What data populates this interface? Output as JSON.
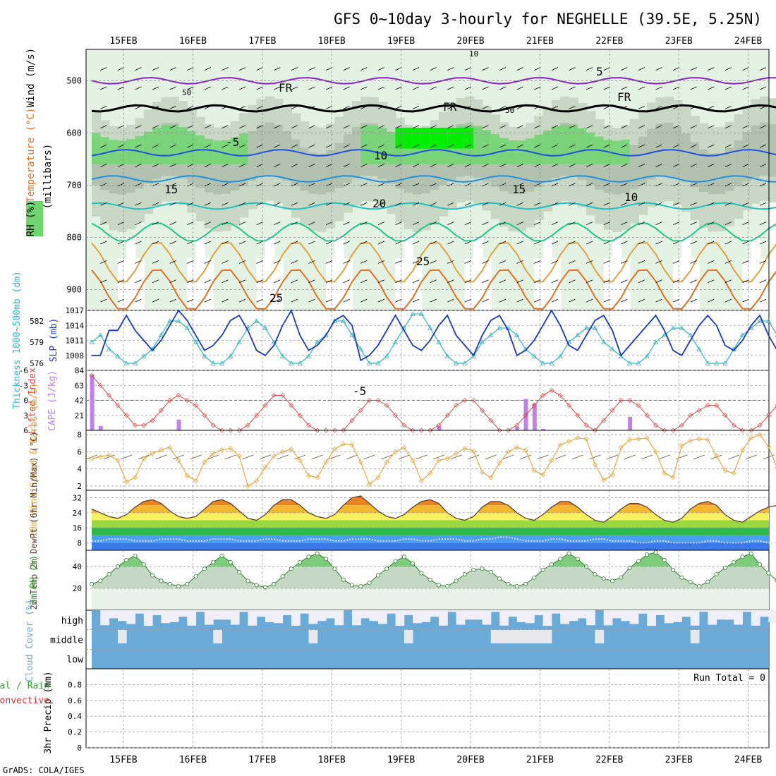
{
  "title": "GFS 0~10day 3-hourly for NEGHELLE (39.5E, 5.25N)",
  "dates": [
    "15FEB",
    "16FEB",
    "17FEB",
    "18FEB",
    "19FEB",
    "20FEB",
    "21FEB",
    "22FEB",
    "23FEB",
    "24FEB"
  ],
  "footer": "GrADS: COLA/IGES",
  "colors": {
    "rh_light": "#e4f2e4",
    "rh_mid": "#c8d8c4",
    "rh_dark": "#a4b4a0",
    "rh_green": "#6fd66f",
    "rh_bright": "#00ee00",
    "purple": "#8a22c8",
    "blue1": "#2050e0",
    "blue2": "#2090e0",
    "teal": "#20c0c0",
    "green": "#20c890",
    "orange": "#e0a040",
    "orange2": "#e07020",
    "red": "#d02060",
    "slp": "#1838c8",
    "thick": "#30b8c8",
    "li": "#e04040",
    "cape": "#c080f0",
    "wind10": "#e8a030",
    "cloud": "#6aaad8"
  },
  "chart_data": [
    {
      "type": "contour",
      "panel": "upper-air",
      "ylabel": "(millibars)",
      "side_labels": [
        "Wind (m/s)",
        "Temperature (°C)",
        "RH (%)"
      ],
      "yticks": [
        500,
        600,
        700,
        800,
        900
      ],
      "ylim": [
        440,
        940
      ],
      "temperature_labels": [
        "-5",
        "FR",
        "-5",
        "10",
        "15",
        "20",
        "25",
        "25",
        "5",
        "FR",
        "FR",
        "15",
        "10",
        "50",
        "50",
        "10"
      ],
      "isotherms": [
        {
          "name": "-5",
          "color": "purple",
          "level": 500
        },
        {
          "name": "FR",
          "color": "black",
          "level": 553
        },
        {
          "name": "-5b",
          "color": "blue1",
          "level": 638
        },
        {
          "name": "10",
          "color": "blue2",
          "level": 688
        },
        {
          "name": "15",
          "color": "teal",
          "level": 740
        },
        {
          "name": "20",
          "color": "green",
          "level": 790
        },
        {
          "name": "25",
          "color": "orange",
          "level": 848
        },
        {
          "name": "25b",
          "color": "orange2",
          "level": 900
        }
      ]
    },
    {
      "type": "line",
      "panel": "slp-thickness",
      "series": [
        {
          "name": "SLP (mb)",
          "axis": "right",
          "ylim": [
            1005,
            1017
          ],
          "yticks": [
            1008,
            1011,
            1014,
            1017
          ],
          "values": [
            1008,
            1008,
            1013,
            1013,
            1016,
            1013,
            1011,
            1009,
            1011,
            1014,
            1017,
            1015,
            1012,
            1009,
            1010,
            1012,
            1015,
            1016,
            1013,
            1009,
            1008,
            1010,
            1014,
            1017,
            1012,
            1009,
            1010,
            1012,
            1015,
            1016,
            1014,
            1007,
            1008,
            1010,
            1013,
            1016,
            1013,
            1010,
            1009,
            1011,
            1014,
            1016,
            1012,
            1010,
            1008,
            1012,
            1015,
            1016,
            1013,
            1008,
            1009,
            1011,
            1014,
            1017,
            1014,
            1010,
            1009,
            1012,
            1015,
            1016,
            1013,
            1008,
            1010,
            1012,
            1014,
            1016,
            1013,
            1009,
            1008,
            1011,
            1014,
            1016,
            1014,
            1010,
            1009,
            1011,
            1014,
            1016,
            1012,
            1009,
            1010,
            1012,
            1015,
            1017
          ]
        },
        {
          "name": "Thickness 1000~500mb (dm)",
          "axis": "left",
          "ylim": [
            575,
            583.5
          ],
          "yticks": [
            576,
            579,
            582
          ],
          "values": [
            579,
            580,
            578,
            577,
            576,
            576,
            577,
            578,
            580,
            582,
            582,
            581,
            579,
            577,
            576,
            576,
            577,
            579,
            581,
            582,
            581,
            579,
            577,
            576,
            576,
            577,
            579,
            580,
            582,
            582,
            580,
            578,
            576,
            576,
            577,
            579,
            581,
            583,
            583,
            581,
            579,
            577,
            576,
            576,
            577,
            579,
            580,
            581,
            581,
            580,
            578,
            577,
            576,
            576,
            577,
            579,
            580,
            581,
            581,
            579,
            578,
            577,
            576,
            576,
            577,
            579,
            580,
            581,
            581,
            580,
            578,
            576,
            576,
            576,
            578,
            580,
            581,
            582,
            582,
            580,
            578,
            576,
            576,
            577
          ]
        }
      ]
    },
    {
      "type": "bar+line",
      "panel": "cape-lifted-index",
      "series": [
        {
          "name": "Lifted Index",
          "ylim": [
            6,
            -6
          ],
          "yticks": [
            -6,
            -3,
            0,
            3,
            6
          ],
          "values": [
            -5,
            -3,
            -1,
            1,
            3,
            5,
            5,
            4,
            2,
            0,
            -1,
            0,
            1,
            3,
            5,
            6,
            6,
            6,
            5,
            3,
            1,
            -1,
            -1,
            1,
            3,
            5,
            6,
            6,
            6,
            6,
            4,
            2,
            0,
            0,
            1,
            3,
            5,
            6,
            6,
            6,
            5,
            3,
            1,
            0,
            0,
            2,
            4,
            6,
            6,
            5,
            3,
            1,
            -1,
            -2,
            -1,
            1,
            3,
            5,
            6,
            4,
            2,
            0,
            0,
            1,
            3,
            5,
            6,
            6,
            5,
            3,
            2,
            1,
            1,
            3,
            5,
            6,
            6,
            5,
            3,
            1,
            1,
            2,
            4,
            6,
            6,
            5,
            3,
            1
          ]
        },
        {
          "name": "CAPE (J/kg)",
          "ylim": [
            0,
            84
          ],
          "yticks": [
            21,
            42,
            63,
            84
          ],
          "values": [
            78,
            6,
            0,
            0,
            0,
            0,
            0,
            0,
            0,
            0,
            15,
            0,
            0,
            0,
            0,
            0,
            0,
            0,
            0,
            0,
            0,
            0,
            0,
            0,
            0,
            0,
            0,
            0,
            0,
            0,
            0,
            0,
            0,
            0,
            0,
            0,
            0,
            0,
            0,
            0,
            6,
            0,
            0,
            0,
            0,
            0,
            0,
            0,
            0,
            5,
            44,
            38,
            2,
            0,
            0,
            0,
            0,
            0,
            0,
            0,
            0,
            0,
            19,
            0,
            0,
            0,
            0,
            0,
            0,
            0,
            0,
            0,
            0,
            0,
            0,
            0,
            0,
            0,
            0,
            0,
            0,
            0,
            0,
            0
          ]
        }
      ]
    },
    {
      "type": "line",
      "panel": "10m-wind",
      "ylabel": "10m Wind Speed & Barbs (m/s)",
      "ylim": [
        1.5,
        8.5
      ],
      "yticks": [
        2,
        4,
        6,
        8
      ],
      "values": [
        5.2,
        5.4,
        5.6,
        5.0,
        2.5,
        3.0,
        5.2,
        5.8,
        6.2,
        6.5,
        5.0,
        3.2,
        2.6,
        4.8,
        5.8,
        6.2,
        6.4,
        5.5,
        2.0,
        2.6,
        4.2,
        5.5,
        6.0,
        6.3,
        5.0,
        3.2,
        3.0,
        4.8,
        6.3,
        6.9,
        6.8,
        4.8,
        2.2,
        3.0,
        4.8,
        6.0,
        6.5,
        5.0,
        2.6,
        3.5,
        5.0,
        5.2,
        5.8,
        6.4,
        6.1,
        3.6,
        3.0,
        4.7,
        6.0,
        6.5,
        6.2,
        3.8,
        3.3,
        5.0,
        6.8,
        7.2,
        7.6,
        7.5,
        4.5,
        2.7,
        3.3,
        6.5,
        7.4,
        7.5,
        7.6,
        6.0,
        3.5,
        3.0,
        6.7,
        7.3,
        7.5,
        7.4,
        5.5,
        3.8,
        3.5,
        6.2,
        7.6,
        8.0,
        6.6,
        4.1,
        3.9,
        5.0,
        6.2,
        6.8
      ]
    },
    {
      "type": "area",
      "panel": "2m-temp",
      "ylabel": "2m Temp 2m DewPt (6hr Min/Max) (°C)",
      "ylim": [
        4,
        36
      ],
      "yticks": [
        8,
        16,
        24,
        32
      ],
      "temp": [
        26,
        24,
        22,
        21,
        23,
        27,
        30,
        31,
        29,
        25,
        22,
        21,
        22,
        26,
        30,
        31,
        29,
        25,
        21,
        20,
        23,
        28,
        31,
        31,
        28,
        24,
        22,
        21,
        23,
        28,
        32,
        33,
        29,
        25,
        22,
        21,
        23,
        27,
        30,
        31,
        29,
        24,
        21,
        20,
        22,
        27,
        30,
        30,
        28,
        24,
        21,
        20,
        23,
        27,
        30,
        30,
        27,
        23,
        20,
        19,
        22,
        26,
        29,
        29,
        27,
        23,
        20,
        19,
        21,
        26,
        29,
        30,
        28,
        23,
        20,
        19,
        22,
        25,
        27,
        28,
        25,
        21,
        19,
        18
      ],
      "dewpt": [
        9,
        9,
        10,
        10,
        10,
        9,
        9,
        9,
        10,
        10,
        10,
        9,
        9,
        9,
        10,
        10,
        10,
        9,
        9,
        9,
        10,
        10,
        9,
        9,
        9,
        10,
        10,
        10,
        9,
        9,
        10,
        10,
        10,
        9,
        9,
        9,
        10,
        10,
        9,
        9,
        10,
        10,
        10,
        9,
        9,
        10,
        10,
        11,
        11,
        10,
        9,
        9,
        9,
        10,
        10,
        9,
        9,
        9,
        10,
        10,
        9,
        9,
        9,
        8,
        8,
        9,
        9,
        8,
        8,
        8,
        8,
        9,
        9,
        8,
        8,
        8,
        9,
        9,
        8,
        8,
        8,
        8,
        8,
        8
      ]
    },
    {
      "type": "area",
      "panel": "2m-rh",
      "ylabel": "2m RH (%)",
      "ylim": [
        0,
        55
      ],
      "yticks": [
        20,
        40
      ],
      "values": [
        24,
        27,
        33,
        40,
        46,
        50,
        42,
        32,
        27,
        24,
        22,
        24,
        31,
        38,
        44,
        50,
        44,
        35,
        27,
        23,
        21,
        24,
        31,
        38,
        44,
        49,
        52,
        47,
        38,
        28,
        23,
        22,
        25,
        32,
        38,
        45,
        49,
        43,
        34,
        28,
        23,
        22,
        27,
        33,
        37,
        38,
        35,
        29,
        24,
        22,
        24,
        30,
        37,
        42,
        47,
        52,
        47,
        40,
        33,
        29,
        27,
        30,
        39,
        45,
        51,
        53,
        46,
        37,
        30,
        26,
        22,
        26,
        33,
        39,
        44,
        49,
        52,
        42,
        34,
        27,
        24,
        22,
        25,
        31
      ]
    },
    {
      "type": "heatmap",
      "panel": "cloud-cover",
      "ylabel": "Cloud Cover (%)",
      "rows": [
        "high",
        "middle",
        "low"
      ]
    },
    {
      "type": "bar",
      "panel": "precip",
      "ylabel": "3hr Precip (mm)",
      "side_labels": [
        "Total / Rain",
        "Convective"
      ],
      "ylim": [
        0,
        1.0
      ],
      "yticks": [
        0,
        0.2,
        0.4,
        0.6,
        0.8
      ],
      "annotation": "Run Total = 0"
    }
  ]
}
